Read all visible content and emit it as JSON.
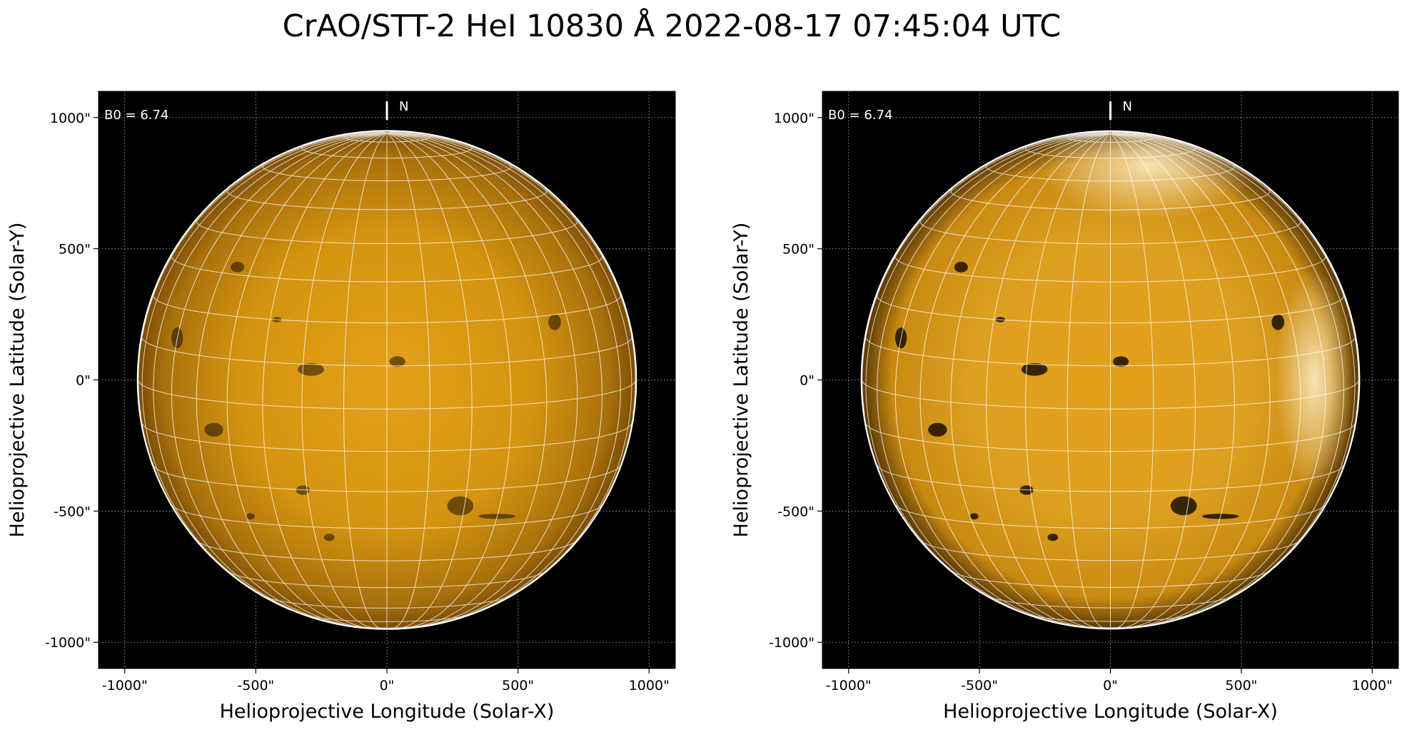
{
  "title": "CrAO/STT-2 HeI 10830 Å 2022-08-17 07:45:04 UTC",
  "panels": [
    {
      "name": "left",
      "processing": "standard",
      "xlabel": "Helioprojective Longitude (Solar-X)",
      "ylabel": "Helioprojective Latitude (Solar-Y)",
      "b0_label": "B0 = 6.74",
      "north_label": "N"
    },
    {
      "name": "right",
      "processing": "contrast-enhanced",
      "xlabel": "Helioprojective Longitude (Solar-X)",
      "ylabel": "Helioprojective Latitude (Solar-Y)",
      "b0_label": "B0 = 6.74",
      "north_label": "N"
    }
  ],
  "axes": {
    "xlim": [
      -1100,
      1100
    ],
    "ylim": [
      -1100,
      1100
    ],
    "x_ticks": [
      -1000,
      -500,
      0,
      500,
      1000
    ],
    "y_ticks": [
      1000,
      500,
      0,
      -500,
      -1000
    ],
    "x_tick_labels": [
      "-1000\"",
      "-500\"",
      "0\"",
      "500\"",
      "1000\""
    ],
    "y_tick_labels": [
      "1000\"",
      "500\"",
      "0\"",
      "-500\"",
      "-1000\""
    ],
    "grid": true,
    "solar_radius_arcsec": 948,
    "b0_deg": 6.74,
    "lat_lon_grid_step_deg": 10
  },
  "colors": {
    "disk_core": "#e4a01a",
    "disk_mid": "#c98a12",
    "disk_edge": "#7a4c05",
    "background": "#000000",
    "grid_line": "#ffffff"
  }
}
